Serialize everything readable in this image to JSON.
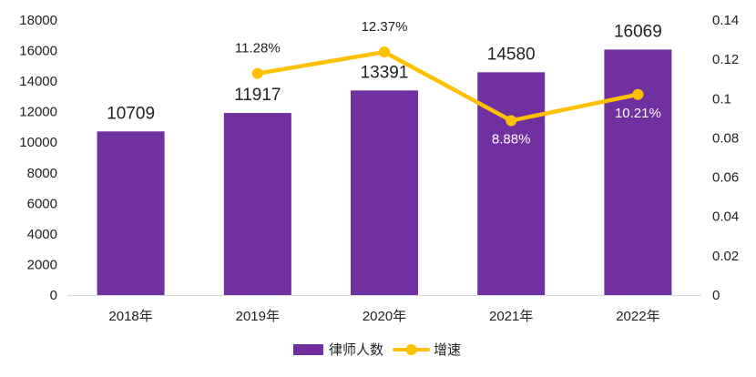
{
  "chart_data": {
    "type": "bar",
    "categories": [
      "2018年",
      "2019年",
      "2020年",
      "2021年",
      "2022年"
    ],
    "series": [
      {
        "name": "律师人数",
        "type": "bar",
        "axis": "left",
        "color": "#7030A0",
        "values": [
          10709,
          11917,
          13391,
          14580,
          16069
        ],
        "labels": [
          "10709",
          "11917",
          "13391",
          "14580",
          "16069"
        ]
      },
      {
        "name": "增速",
        "type": "line",
        "axis": "right",
        "color": "#FFC000",
        "values": [
          null,
          0.1128,
          0.1237,
          0.0888,
          0.1021
        ],
        "labels": [
          "",
          "11.28%",
          "12.37%",
          "8.88%",
          "10.21%"
        ]
      }
    ],
    "y_left": {
      "range": [
        0,
        18000
      ],
      "ticks": [
        "0",
        "2000",
        "4000",
        "6000",
        "8000",
        "10000",
        "12000",
        "14000",
        "16000",
        "18000"
      ]
    },
    "y_right": {
      "range": [
        0,
        0.14
      ],
      "ticks": [
        "0",
        "0.02",
        "0.04",
        "0.06",
        "0.08",
        "0.1",
        "0.12",
        "0.14"
      ]
    },
    "grid": false,
    "legend": "bottom-center"
  }
}
